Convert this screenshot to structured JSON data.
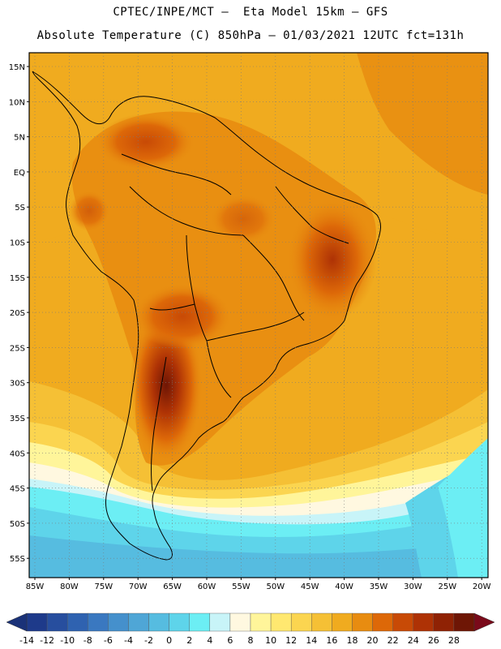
{
  "header": {
    "line1": "CPTEC/INPE/MCT –  Eta Model 15km – GFS",
    "line2": "Absolute Temperature (C) 850hPa – 01/03/2021 12UTC fct=131h"
  },
  "map": {
    "lat_labels": [
      "15N",
      "10N",
      "5N",
      "EQ",
      "5S",
      "10S",
      "15S",
      "20S",
      "25S",
      "30S",
      "35S",
      "40S",
      "45S",
      "50S",
      "55S"
    ],
    "lon_labels": [
      "85W",
      "80W",
      "75W",
      "70W",
      "65W",
      "60W",
      "55W",
      "50W",
      "45W",
      "40W",
      "35W",
      "30W",
      "25W",
      "20W"
    ],
    "grid": "dotted"
  },
  "colorbar": {
    "labels": [
      "-14",
      "-12",
      "-10",
      "-8",
      "-6",
      "-4",
      "-2",
      "0",
      "2",
      "4",
      "6",
      "8",
      "10",
      "12",
      "14",
      "16",
      "18",
      "20",
      "22",
      "24",
      "26",
      "28"
    ],
    "colors": [
      "#1e3a8a",
      "#274e9e",
      "#2f62b0",
      "#3a78c0",
      "#4590cc",
      "#4fa6d6",
      "#56bce0",
      "#5ed4ea",
      "#6ceef4",
      "#c8f4f8",
      "#fff8e0",
      "#fff59a",
      "#ffe870",
      "#fbd550",
      "#f5c035",
      "#f0ab1f",
      "#e88c10",
      "#dd6808",
      "#c84a06",
      "#ae3205",
      "#8f2204",
      "#6e1605"
    ],
    "left_arrow_color": "#1a3278",
    "right_arrow_color": "#7a0a1a"
  }
}
